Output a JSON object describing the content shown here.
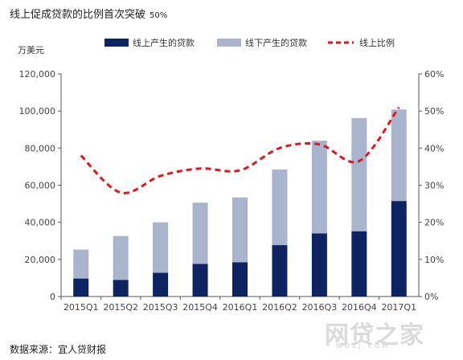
{
  "title": "线上促成贷款的比例首次突破",
  "title_suffix": "50%",
  "source": "数据来源：宜人贷财报",
  "watermark": "网贷之家",
  "watermark_url": "WDZJ.COM",
  "colors": {
    "online": "#0e2462",
    "offline": "#a9b5cc",
    "ratio": "#e8141c"
  },
  "chart_data": {
    "type": "bar",
    "stacked": true,
    "categories": [
      "2015Q1",
      "2015Q2",
      "2015Q3",
      "2015Q4",
      "2016Q1",
      "2016Q2",
      "2016Q3",
      "2016Q4",
      "2017Q1"
    ],
    "series": [
      {
        "name": "线上产生的贷款",
        "axis": "left",
        "values": [
          9700,
          9000,
          12800,
          17600,
          18500,
          27700,
          34000,
          35200,
          51500
        ]
      },
      {
        "name": "线下产生的贷款",
        "axis": "left",
        "values": [
          15600,
          23600,
          27200,
          33000,
          34900,
          40800,
          50000,
          61000,
          49300
        ]
      },
      {
        "name": "线上比例",
        "axis": "right",
        "type": "line",
        "style": "dashed",
        "values": [
          38,
          28,
          32.5,
          34.5,
          34,
          40,
          41,
          36.5,
          51
        ]
      }
    ],
    "ylabel": "万美元",
    "ylim": [
      0,
      120000
    ],
    "yticks": [
      "0",
      "20,000",
      "40,000",
      "60,000",
      "80,000",
      "100,000",
      "120,000"
    ],
    "y2lim": [
      0,
      60
    ],
    "y2ticks": [
      "0%",
      "10%",
      "20%",
      "30%",
      "40%",
      "50%",
      "60%"
    ],
    "legend_position": "top",
    "grid": false
  }
}
